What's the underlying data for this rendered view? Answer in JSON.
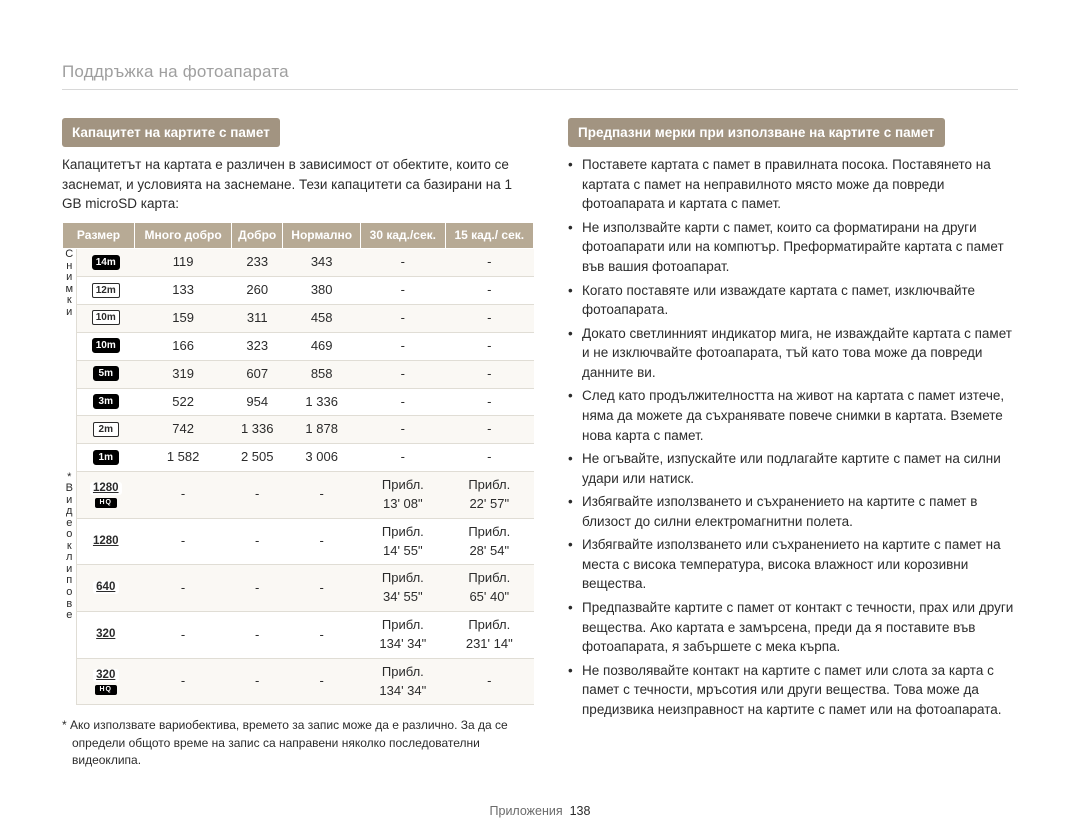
{
  "page": {
    "title": "Поддръжка на фотоапарата",
    "footer_label": "Приложения",
    "footer_page": "138"
  },
  "left": {
    "heading": "Капацитет на картите с памет",
    "intro": "Капацитетът на картата е различен в зависимост от обектите, които се заснемат, и условията на заснемане. Тези капацитети са базирани на 1 GB microSD карта:",
    "table": {
      "headers": [
        "Размер",
        "Много добро",
        "Добро",
        "Нормално",
        "30 кад./сек.",
        "15 кад./ сек."
      ],
      "side_labels": {
        "photos": "Снимки",
        "videos": "* Видеоклипове"
      },
      "photo_rows": [
        {
          "size": "14m",
          "badge_text": "14m",
          "badge_class": "solid",
          "cells": [
            "119",
            "233",
            "343",
            "-",
            "-"
          ]
        },
        {
          "size": "12m",
          "badge_text": "12m",
          "badge_class": "thin",
          "cells": [
            "133",
            "260",
            "380",
            "-",
            "-"
          ]
        },
        {
          "size": "10mW",
          "badge_text": "10m",
          "badge_class": "thin",
          "cells": [
            "159",
            "311",
            "458",
            "-",
            "-"
          ]
        },
        {
          "size": "10m",
          "badge_text": "10m",
          "badge_class": "solid",
          "cells": [
            "166",
            "323",
            "469",
            "-",
            "-"
          ]
        },
        {
          "size": "5m",
          "badge_text": "5m",
          "badge_class": "solid",
          "cells": [
            "319",
            "607",
            "858",
            "-",
            "-"
          ]
        },
        {
          "size": "3m",
          "badge_text": "3m",
          "badge_class": "solid",
          "cells": [
            "522",
            "954",
            "1 336",
            "-",
            "-"
          ]
        },
        {
          "size": "2m",
          "badge_text": "2m",
          "badge_class": "thin",
          "cells": [
            "742",
            "1 336",
            "1 878",
            "-",
            "-"
          ]
        },
        {
          "size": "1m",
          "badge_text": "1m",
          "badge_class": "solid",
          "cells": [
            "1 582",
            "2 505",
            "3 006",
            "-",
            "-"
          ]
        }
      ],
      "video_rows": [
        {
          "size": "1280 HQ",
          "badge_text": "1280",
          "hq": true,
          "cells": [
            "-",
            "-",
            "-",
            "Прибл. 13' 08\"",
            "Прибл. 22' 57\""
          ]
        },
        {
          "size": "1280",
          "badge_text": "1280",
          "cells": [
            "-",
            "-",
            "-",
            "Прибл. 14' 55\"",
            "Прибл. 28' 54\""
          ]
        },
        {
          "size": "640",
          "badge_text": "640",
          "cells": [
            "-",
            "-",
            "-",
            "Прибл. 34' 55\"",
            "Прибл. 65' 40\""
          ]
        },
        {
          "size": "320",
          "badge_text": "320",
          "cells": [
            "-",
            "-",
            "-",
            "Прибл. 134' 34\"",
            "Прибл. 231' 14\""
          ]
        },
        {
          "size": "320 WEB",
          "badge_text": "320",
          "hq": true,
          "cells": [
            "-",
            "-",
            "-",
            "Прибл. 134' 34\"",
            "-"
          ]
        }
      ]
    },
    "footnote": "* Ако използвате вариобектива, времето за запис може да е различно. За да се определи общото време на запис са направени няколко последователни видеоклипа."
  },
  "right": {
    "heading": "Предпазни мерки при използване на картите с памет",
    "bullets": [
      "Поставете картата с памет в правилната посока. Поставянето на картата с памет на неправилното място може да повреди фотоапарата и картата с памет.",
      "Не използвайте карти с памет, които са форматирани на други фотоапарати или на компютър. Преформатирайте картата с памет във вашия фотоапарат.",
      "Когато поставяте или изваждате картата с памет, изключвайте фотоапарата.",
      "Докато светлинният индикатор мига, не изваждайте картата с памет и не изключвайте фотоапарата, тъй като това може да повреди данните ви.",
      "След като продължителността на живот на картата с памет изтече, няма да можете да съхранявате повече снимки в картата. Вземете нова карта с памет.",
      "Не огъвайте, изпускайте или подлагайте картите с памет на силни удари или натиск.",
      "Избягвайте използването и съхранението на картите с памет в близост до силни електромагнитни полета.",
      "Избягвайте използването или съхранението на картите с памет на места с висока температура, висока влажност или корозивни вещества.",
      "Предпазвайте картите с памет от контакт с течности, прах или други вещества. Ако картата е замърсена, преди да я поставите във фотоапарата, я забършете с мека кърпа.",
      "Не позволявайте контакт на картите с памет или слота за карта с памет с течности, мръсотия или други вещества. Това може да предизвика неизправност на картите с памет или на фотоапарата."
    ]
  },
  "style": {
    "heading_bg": "#a29481",
    "heading_fg": "#ffffff",
    "th_bg": "#b7aa95",
    "row_border": "#e0ddd5"
  }
}
